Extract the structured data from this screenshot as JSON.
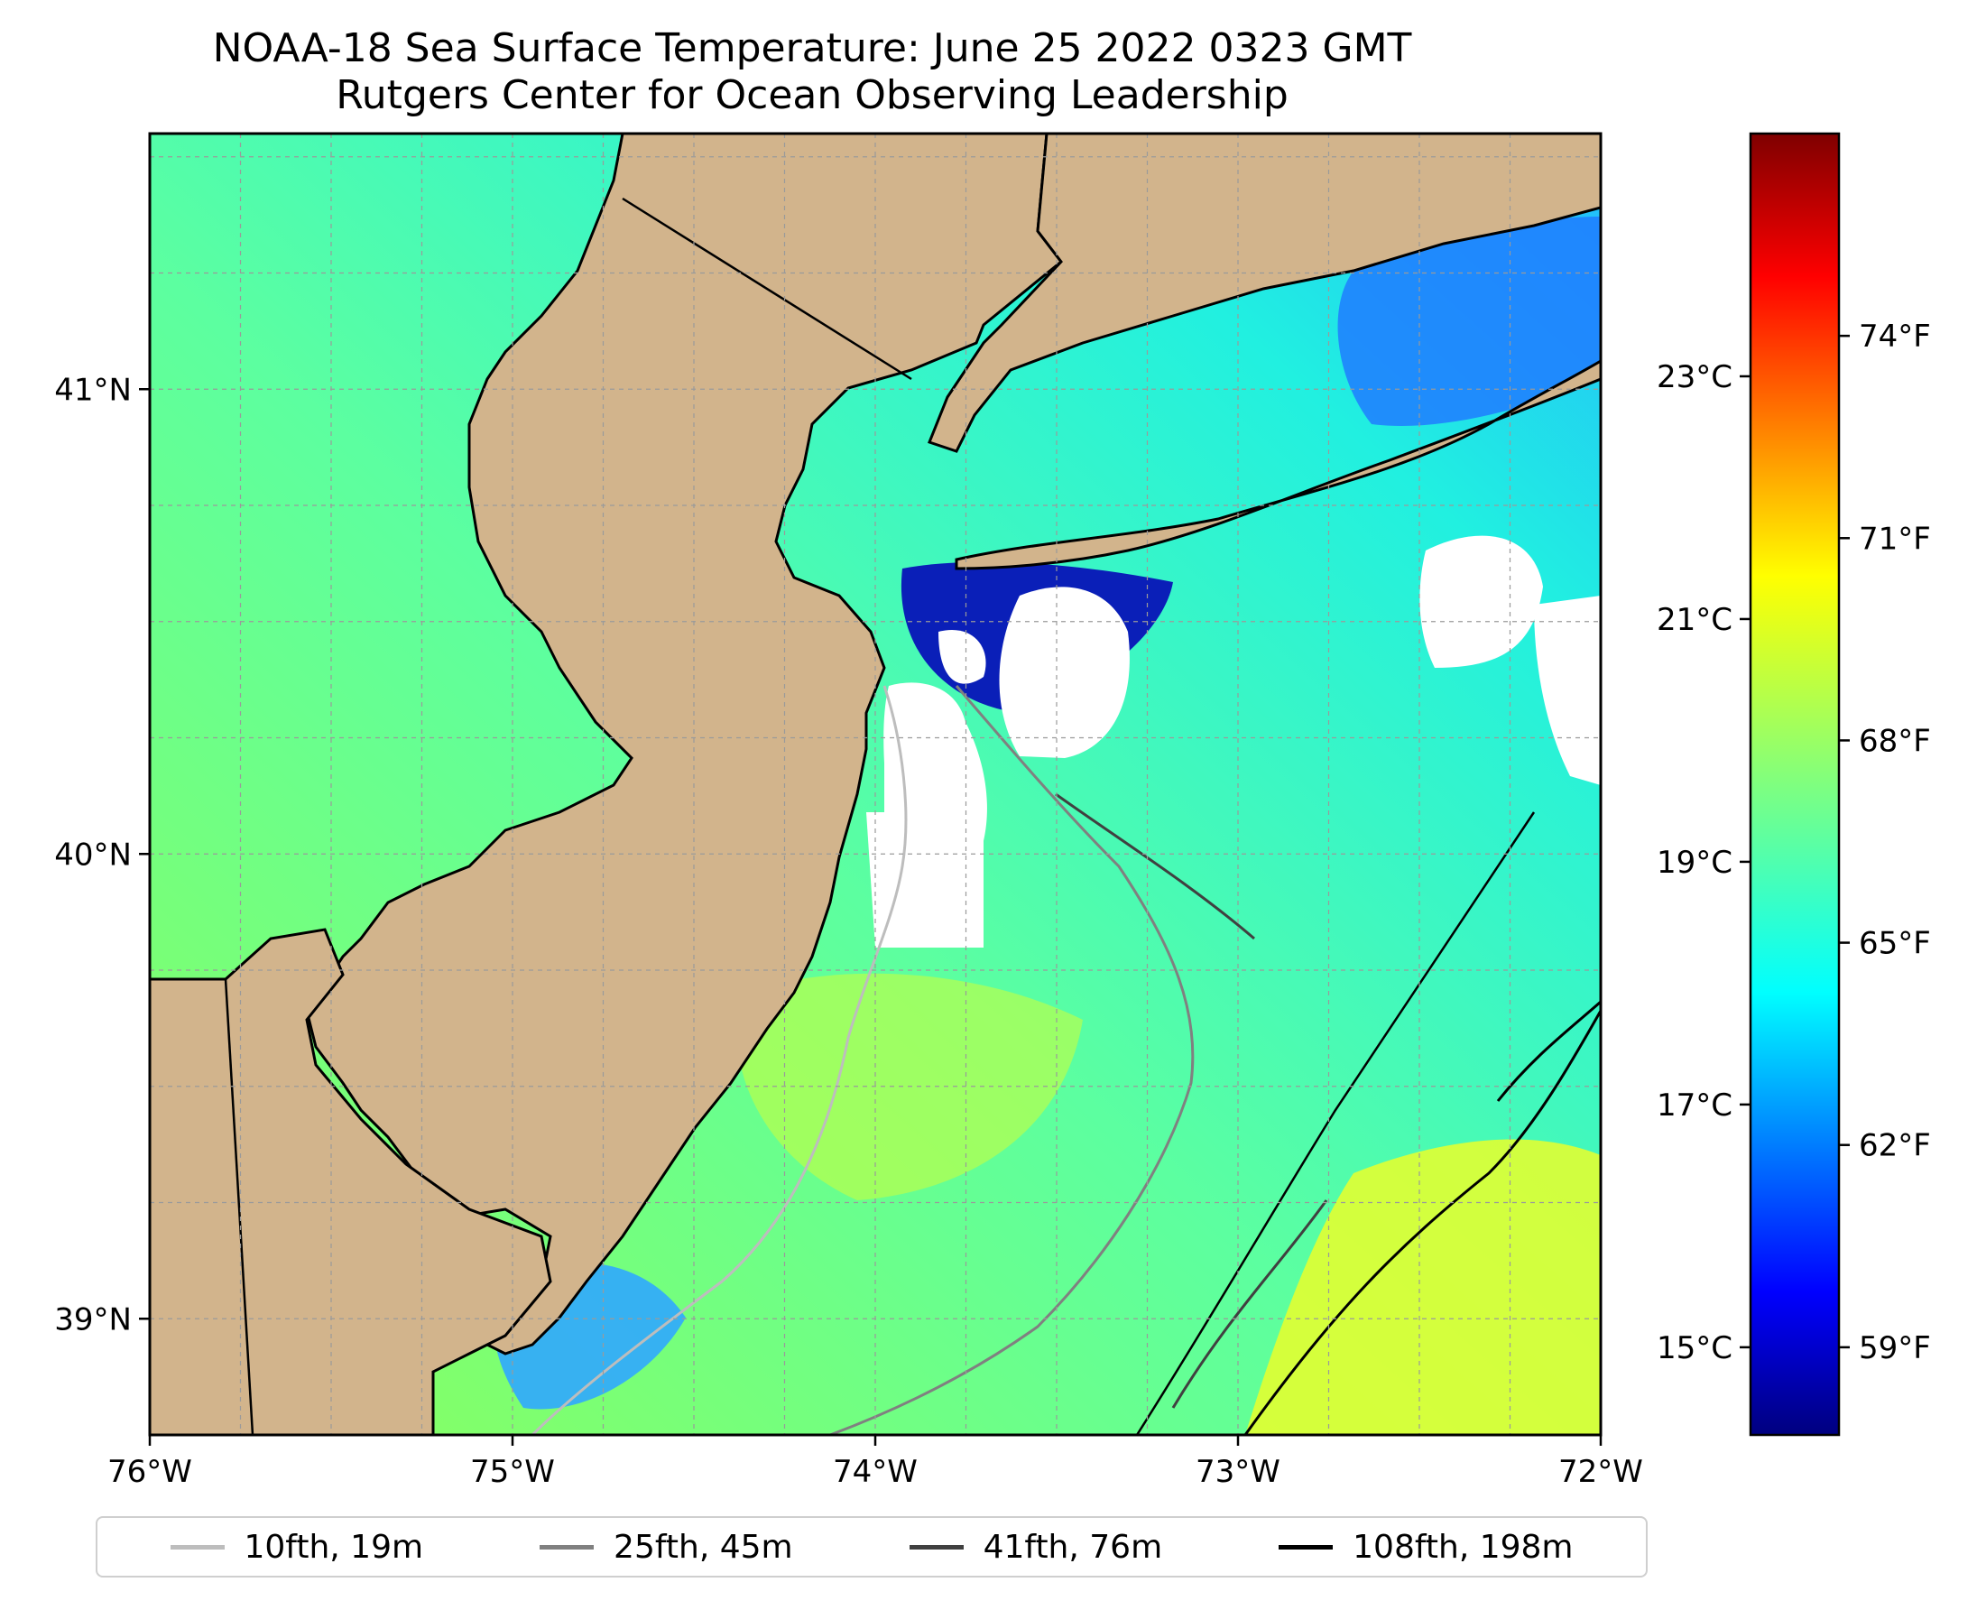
{
  "title": {
    "line1": "NOAA-18 Sea Surface Temperature: June 25 2022 0323 GMT",
    "line2": "Rutgers Center for Ocean Observing Leadership"
  },
  "map": {
    "lon_range": [
      -76,
      -72
    ],
    "lat_range": [
      38.75,
      41.55
    ],
    "lon_ticks": [
      {
        "value": -76,
        "label": "76°W"
      },
      {
        "value": -75,
        "label": "75°W"
      },
      {
        "value": -74,
        "label": "74°W"
      },
      {
        "value": -73,
        "label": "73°W"
      },
      {
        "value": -72,
        "label": "72°W"
      }
    ],
    "lat_ticks": [
      {
        "value": 41,
        "label": "41°N"
      },
      {
        "value": 40,
        "label": "40°N"
      },
      {
        "value": 39,
        "label": "39°N"
      }
    ],
    "grid": true,
    "colors": {
      "land": "#d2b48c",
      "no_data": "#ffffff",
      "coastline": "#000000"
    }
  },
  "colorbar": {
    "colormap": "jet",
    "celsius_ticks": [
      {
        "value": 23,
        "label": "23°C"
      },
      {
        "value": 21,
        "label": "21°C"
      },
      {
        "value": 19,
        "label": "19°C"
      },
      {
        "value": 17,
        "label": "17°C"
      },
      {
        "value": 15,
        "label": "15°C"
      }
    ],
    "fahrenheit_ticks": [
      {
        "value": 74,
        "label": "74°F"
      },
      {
        "value": 71,
        "label": "71°F"
      },
      {
        "value": 68,
        "label": "68°F"
      },
      {
        "value": 65,
        "label": "65°F"
      },
      {
        "value": 62,
        "label": "62°F"
      },
      {
        "value": 59,
        "label": "59°F"
      }
    ],
    "range_f": [
      57.7,
      77.0
    ]
  },
  "legend": {
    "placement": "bottom",
    "entries": [
      {
        "label": "10fth, 19m",
        "color": "#bdbdbd"
      },
      {
        "label": "25fth, 45m",
        "color": "#808080"
      },
      {
        "label": "41fth, 76m",
        "color": "#404040"
      },
      {
        "label": "108fth, 198m",
        "color": "#000000"
      }
    ]
  }
}
